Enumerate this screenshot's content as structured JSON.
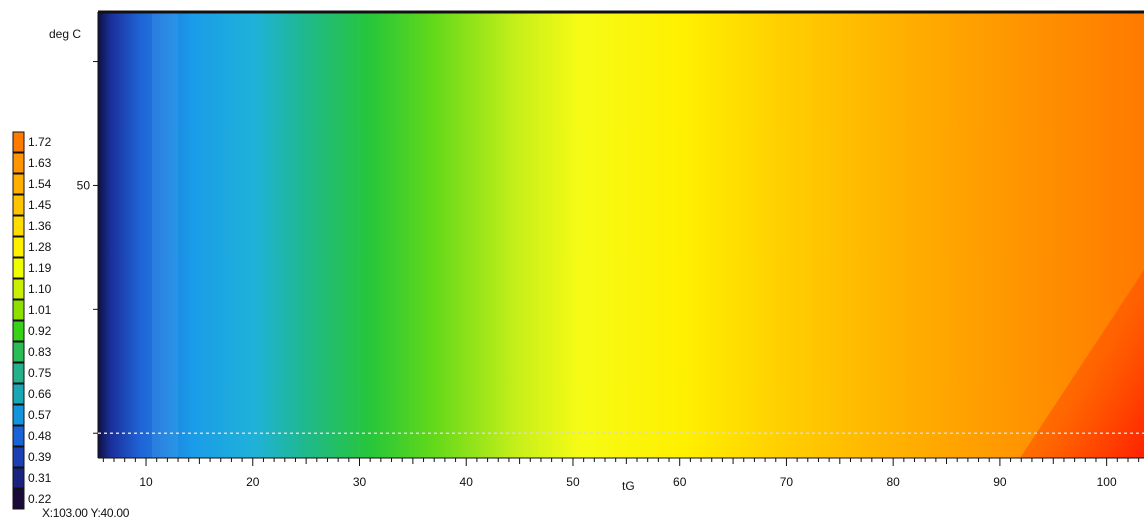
{
  "chart_data": {
    "type": "heatmap",
    "ylabel": "deg C",
    "xlabel": "tG",
    "x_ticks": [
      10,
      20,
      30,
      40,
      50,
      60,
      70,
      80,
      90,
      100
    ],
    "xlim": [
      5.5,
      103.5
    ],
    "y_ticks": [
      50
    ],
    "ylim": [
      39,
      57
    ],
    "legend_values": [
      "1.72",
      "1.63",
      "1.54",
      "1.45",
      "1.36",
      "1.28",
      "1.19",
      "1.10",
      "1.01",
      "0.92",
      "0.83",
      "0.75",
      "0.66",
      "0.57",
      "0.48",
      "0.39",
      "0.31",
      "0.22"
    ],
    "legend_colors": [
      "#ff7a00",
      "#ff9500",
      "#ffaf00",
      "#ffc400",
      "#ffdd00",
      "#fff000",
      "#f0ff00",
      "#c8f000",
      "#8de000",
      "#38d11a",
      "#2bbd55",
      "#23b08a",
      "#19a7b3",
      "#1295dd",
      "#1a62d8",
      "#1d3fb4",
      "#1a237d",
      "#1a0a3a"
    ],
    "crosshair_y": 40,
    "value_field_note": "",
    "grid": false,
    "legend_position": "left"
  },
  "readout": {
    "text": "X:103.00  Y:40.00"
  }
}
